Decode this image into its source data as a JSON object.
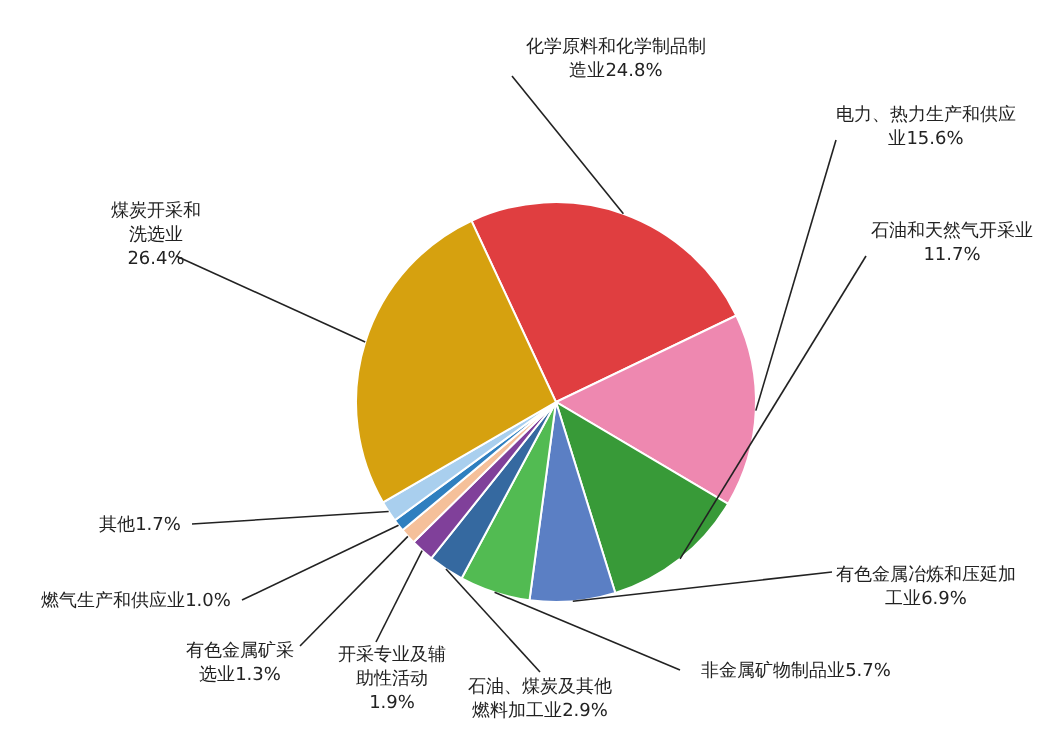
{
  "chart_data": {
    "type": "pie",
    "categories": [
      "化学原料和化学制品制造业",
      "电力、热力生产和供应业",
      "石油和天然气开采业",
      "有色金属冶炼和压延加工业",
      "非金属矿物制品业",
      "石油、煤炭及其他燃料加工业",
      "开采专业及辅助性活动",
      "有色金属矿采选业",
      "燃气生产和供应业",
      "其他",
      "煤炭开采和洗选业"
    ],
    "values": [
      24.8,
      15.6,
      11.7,
      6.9,
      5.7,
      2.9,
      1.9,
      1.3,
      1.0,
      1.7,
      26.4
    ],
    "value_labels": [
      "24.8%",
      "15.6%",
      "11.7%",
      "6.9%",
      "5.7%",
      "2.9%",
      "1.9%",
      "1.3%",
      "1.0%",
      "1.7%",
      "26.4%"
    ],
    "colors": [
      "#e03e40",
      "#ee88b0",
      "#389a38",
      "#5b7fc4",
      "#52bb52",
      "#3569a0",
      "#80409a",
      "#f5c09a",
      "#2f7fbf",
      "#a9cfee",
      "#d6a10f"
    ]
  }
}
